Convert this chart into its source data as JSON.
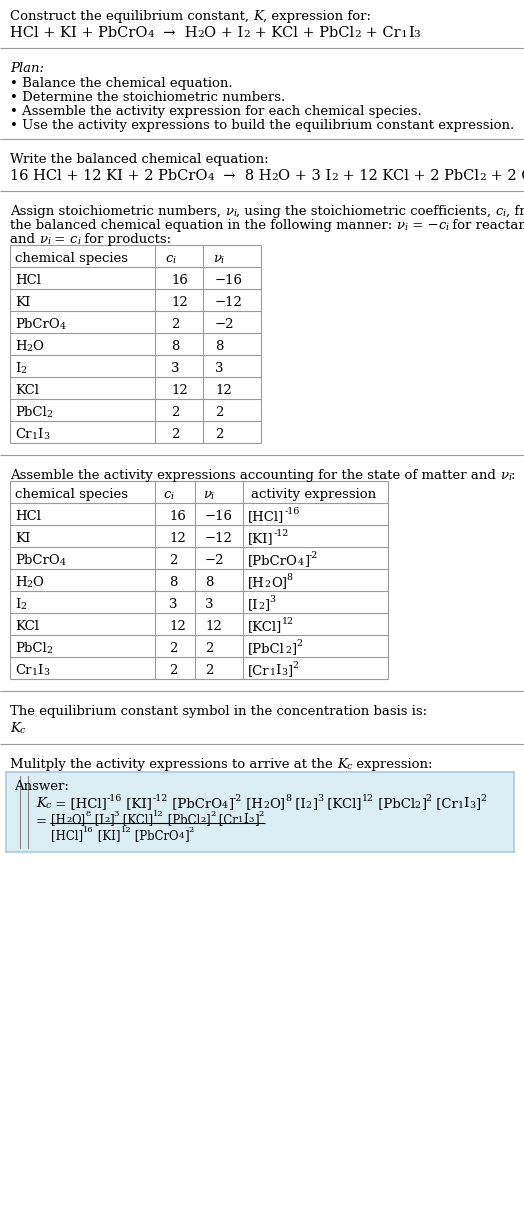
{
  "plan_items": [
    "• Balance the chemical equation.",
    "• Determine the stoichiometric numbers.",
    "• Assemble the activity expression for each chemical species.",
    "• Use the activity expressions to build the equilibrium constant expression."
  ],
  "table1_rows": [
    [
      "HCl",
      "16",
      "−16"
    ],
    [
      "KI",
      "12",
      "−12"
    ],
    [
      "PbCrO4",
      "2",
      "−2"
    ],
    [
      "H2O",
      "8",
      "8"
    ],
    [
      "I2",
      "3",
      "3"
    ],
    [
      "KCl",
      "12",
      "12"
    ],
    [
      "PbCl2",
      "2",
      "2"
    ],
    [
      "Cr1I3",
      "2",
      "2"
    ]
  ],
  "bg_color": "#ffffff",
  "answer_box_color": "#daeef3",
  "answer_box_edge": "#aaccdd"
}
